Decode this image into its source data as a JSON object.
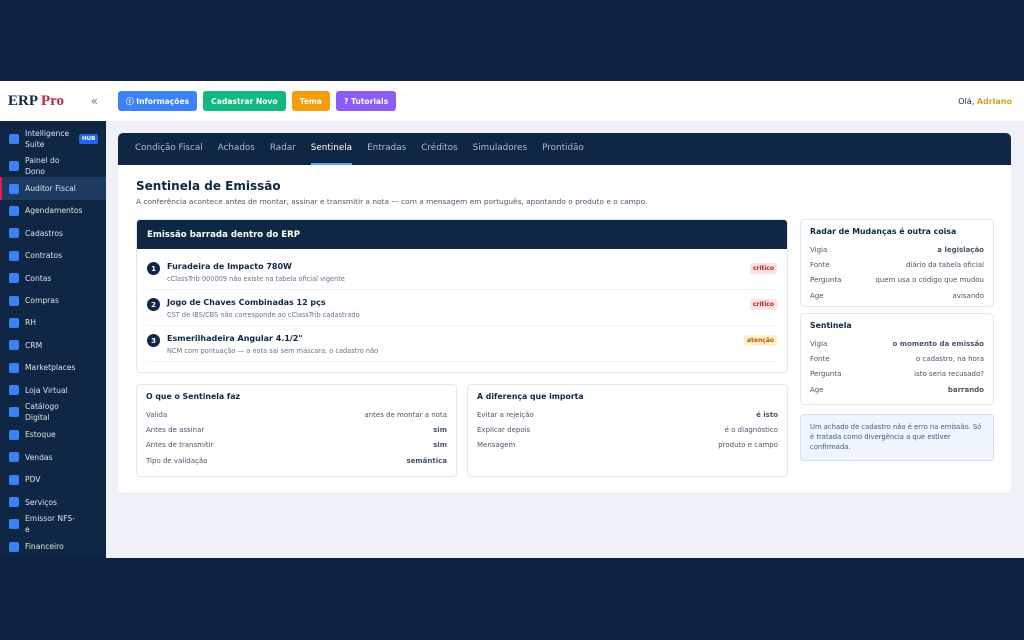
{
  "sidebar": {
    "brand": "ERP",
    "brand_accent": "Pro",
    "collapse": "«",
    "items": [
      {
        "label": "Intelligence Suite",
        "badge": "HUB"
      },
      {
        "label": "Painel do Dono"
      },
      {
        "label": "Auditor Fiscal",
        "active": true
      },
      {
        "label": "Agendamentos"
      },
      {
        "label": "Cadastros"
      },
      {
        "label": "Contratos"
      },
      {
        "label": "Contas"
      },
      {
        "label": "Compras"
      },
      {
        "label": "RH"
      },
      {
        "label": "CRM"
      },
      {
        "label": "Marketplaces"
      },
      {
        "label": "Loja Virtual"
      },
      {
        "label": "Catálogo Digital"
      },
      {
        "label": "Estoque"
      },
      {
        "label": "Vendas"
      },
      {
        "label": "PDV"
      },
      {
        "label": "Serviços"
      },
      {
        "label": "Emissor NFS-e"
      },
      {
        "label": "Financeiro"
      }
    ]
  },
  "topbar": {
    "buttons": [
      {
        "label": "ⓘ Informações",
        "color": "#3b82f6"
      },
      {
        "label": "Cadastrar Novo",
        "color": "#10b981"
      },
      {
        "label": "Tema",
        "color": "#f59e0b"
      },
      {
        "label": "? Tutoriais",
        "color": "#8b5cf6"
      }
    ],
    "greeting": "Olá,",
    "user": "Adriano"
  },
  "tabs": [
    {
      "label": "Condição Fiscal"
    },
    {
      "label": "Achados"
    },
    {
      "label": "Radar"
    },
    {
      "label": "Sentinela",
      "active": true
    },
    {
      "label": "Entradas"
    },
    {
      "label": "Créditos"
    },
    {
      "label": "Simuladores"
    },
    {
      "label": "Prontidão"
    }
  ],
  "page": {
    "title": "Sentinela de Emissão",
    "subtitle": "A conferência acontece antes de montar, assinar e transmitir a nota — com a mensagem em português, apontando o produto e o campo."
  },
  "blocked": {
    "title": "Emissão barrada dentro do ERP",
    "items": [
      {
        "number": 1,
        "name": "Furadeira de Impacto 780W",
        "detail": "cClassTrib 000009 não existe na tabela oficial vigente",
        "badge": "crítico",
        "tone": "critical"
      },
      {
        "number": 2,
        "name": "Jogo de Chaves Combinadas 12 pçs",
        "detail": "CST de IBS/CBS não corresponde ao cClassTrib cadastrado",
        "badge": "crítico",
        "tone": "critical"
      },
      {
        "number": 3,
        "name": "Esmerilhadeira Angular 4.1/2\"",
        "detail": "NCM com pontuação — a nota sai sem máscara, o cadastro não",
        "badge": "atenção",
        "tone": "warning"
      }
    ]
  },
  "cards": [
    {
      "title": "O que o Sentinela faz",
      "rows": [
        {
          "label": "Valida",
          "value": "antes de montar a nota"
        },
        {
          "label": "Antes de assinar",
          "value": "sim",
          "tone": "green"
        },
        {
          "label": "Antes de transmitir",
          "value": "sim",
          "tone": "green"
        },
        {
          "label": "Tipo de validação",
          "value": "semântica",
          "tone": "green"
        }
      ]
    },
    {
      "title": "A diferença que importa",
      "rows": [
        {
          "label": "Evitar a rejeição",
          "value": "é isto",
          "tone": "green"
        },
        {
          "label": "Explicar depois",
          "value": "é o diagnóstico",
          "tone": "muted"
        },
        {
          "label": "Mensagem",
          "value": "produto e campo"
        }
      ]
    }
  ],
  "side_cards": [
    {
      "title": "Radar de Mudanças é outra coisa",
      "rows": [
        {
          "label": "Vigia",
          "value": "a legislação",
          "tone": "green"
        },
        {
          "label": "Fonte",
          "value": "diário da tabela oficial"
        },
        {
          "label": "Pergunta",
          "value": "quem usa o código que mudou"
        },
        {
          "label": "Age",
          "value": "avisando"
        }
      ]
    },
    {
      "title": "Sentinela",
      "rows": [
        {
          "label": "Vigia",
          "value": "o momento da emissão",
          "tone": "green"
        },
        {
          "label": "Fonte",
          "value": "o cadastro, na hora"
        },
        {
          "label": "Pergunta",
          "value": "isto seria recusado?"
        },
        {
          "label": "Age",
          "value": "barrando",
          "tone": "green"
        }
      ]
    }
  ],
  "note": "Um achado de cadastro não é erro na emissão. Só é tratada como divergência a que estiver confirmada."
}
